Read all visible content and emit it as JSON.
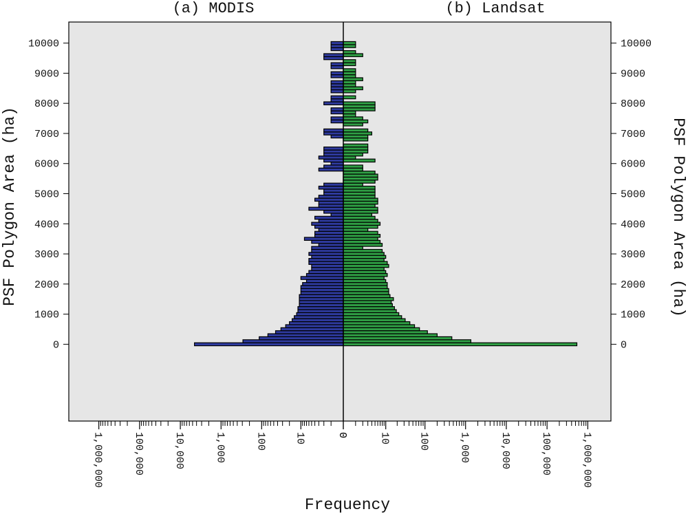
{
  "chart_data": {
    "type": "pyramid",
    "x_label": "Frequency",
    "y_label_left": "PSF Polygon Area (ha)",
    "y_label_right": "PSF Polygon Area (ha)",
    "y": [
      0,
      100,
      200,
      300,
      400,
      500,
      600,
      700,
      800,
      900,
      1000,
      1100,
      1200,
      1300,
      1400,
      1500,
      1600,
      1700,
      1800,
      1900,
      2000,
      2100,
      2200,
      2300,
      2400,
      2500,
      2600,
      2700,
      2800,
      2900,
      3000,
      3100,
      3200,
      3300,
      3400,
      3500,
      3600,
      3700,
      3800,
      3900,
      4000,
      4100,
      4200,
      4300,
      4400,
      4500,
      4600,
      4700,
      4800,
      4900,
      5000,
      5100,
      5200,
      5300,
      5400,
      5500,
      5600,
      5700,
      5800,
      5900,
      6000,
      6100,
      6200,
      6300,
      6400,
      6500,
      6600,
      6700,
      6800,
      6900,
      7000,
      7100,
      7200,
      7300,
      7400,
      7500,
      7600,
      7700,
      7800,
      7900,
      8000,
      8100,
      8200,
      8300,
      8400,
      8500,
      8600,
      8700,
      8800,
      8900,
      9000,
      9100,
      9200,
      9300,
      9400,
      9500,
      9600,
      9700,
      9800,
      9900,
      10000
    ],
    "bin_width": 100,
    "series": [
      {
        "name": "(a) MODIS",
        "color": "#2e3a9e",
        "side": "left",
        "values": [
          4500,
          290,
          115,
          70,
          45,
          33,
          25,
          20,
          17,
          15,
          13,
          12,
          12,
          11,
          11,
          11,
          11,
          10,
          10,
          10,
          9,
          7,
          10,
          7,
          6,
          5,
          5,
          6,
          6,
          5,
          6,
          5,
          5,
          3,
          5,
          8,
          4,
          4,
          3,
          4,
          5,
          3,
          4,
          1,
          2,
          6,
          3,
          3,
          4,
          3,
          2,
          2,
          3,
          2,
          0,
          0,
          0,
          0,
          3,
          2,
          1,
          2,
          3,
          2,
          2,
          2,
          0,
          0,
          0,
          1,
          2,
          2,
          0,
          0,
          1,
          1,
          0,
          1,
          1,
          0,
          2,
          1,
          1,
          0,
          1,
          1,
          1,
          1,
          0,
          1,
          1,
          0,
          1,
          1,
          0,
          2,
          2,
          0,
          1,
          1,
          1
        ]
      },
      {
        "name": "(b) Landsat",
        "color": "#2f9e44",
        "side": "right",
        "values": [
          540000,
          1350,
          460,
          200,
          115,
          73,
          55,
          42,
          32,
          26,
          22,
          19,
          17,
          15,
          14,
          16,
          13,
          12,
          12,
          11,
          11,
          10,
          9,
          11,
          10,
          9,
          12,
          11,
          9,
          10,
          9,
          8,
          2,
          8,
          7,
          6,
          7,
          6,
          3,
          6,
          7,
          6,
          5,
          4,
          6,
          6,
          5,
          6,
          6,
          5,
          5,
          5,
          5,
          2,
          5,
          6,
          6,
          5,
          2,
          2,
          0,
          5,
          1,
          2,
          3,
          3,
          3,
          0,
          3,
          3,
          4,
          3,
          0,
          2,
          3,
          2,
          1,
          1,
          5,
          5,
          5,
          0,
          1,
          0,
          1,
          2,
          1,
          1,
          2,
          1,
          1,
          1,
          0,
          1,
          1,
          0,
          2,
          1,
          0,
          1,
          1
        ]
      }
    ],
    "xscale": "log",
    "xlim": [
      0,
      3700000
    ],
    "xticks": [
      0,
      10,
      100,
      {
        "value": 1000,
        "label": "1,000"
      },
      {
        "value": 10000,
        "label": "10,000"
      },
      {
        "value": 100000,
        "label": "100,000"
      },
      {
        "value": 1000000,
        "label": "1,000,000"
      }
    ],
    "xticks_minor": [
      1,
      2,
      3,
      4,
      5,
      6,
      7,
      8,
      9,
      20,
      30,
      40,
      50,
      60,
      70,
      80,
      90,
      200,
      300,
      400,
      500,
      600,
      700,
      800,
      900,
      2000,
      3000,
      4000,
      5000,
      6000,
      7000,
      8000,
      9000,
      20000,
      30000,
      40000,
      50000,
      60000,
      70000,
      80000,
      90000,
      200000,
      300000,
      400000,
      500000,
      600000,
      700000,
      800000,
      900000
    ],
    "ylim": [
      -2550,
      10700
    ],
    "yticks": [
      0,
      1000,
      2000,
      3000,
      4000,
      5000,
      6000,
      7000,
      8000,
      9000,
      10000
    ],
    "background": "#e6e6e6"
  }
}
